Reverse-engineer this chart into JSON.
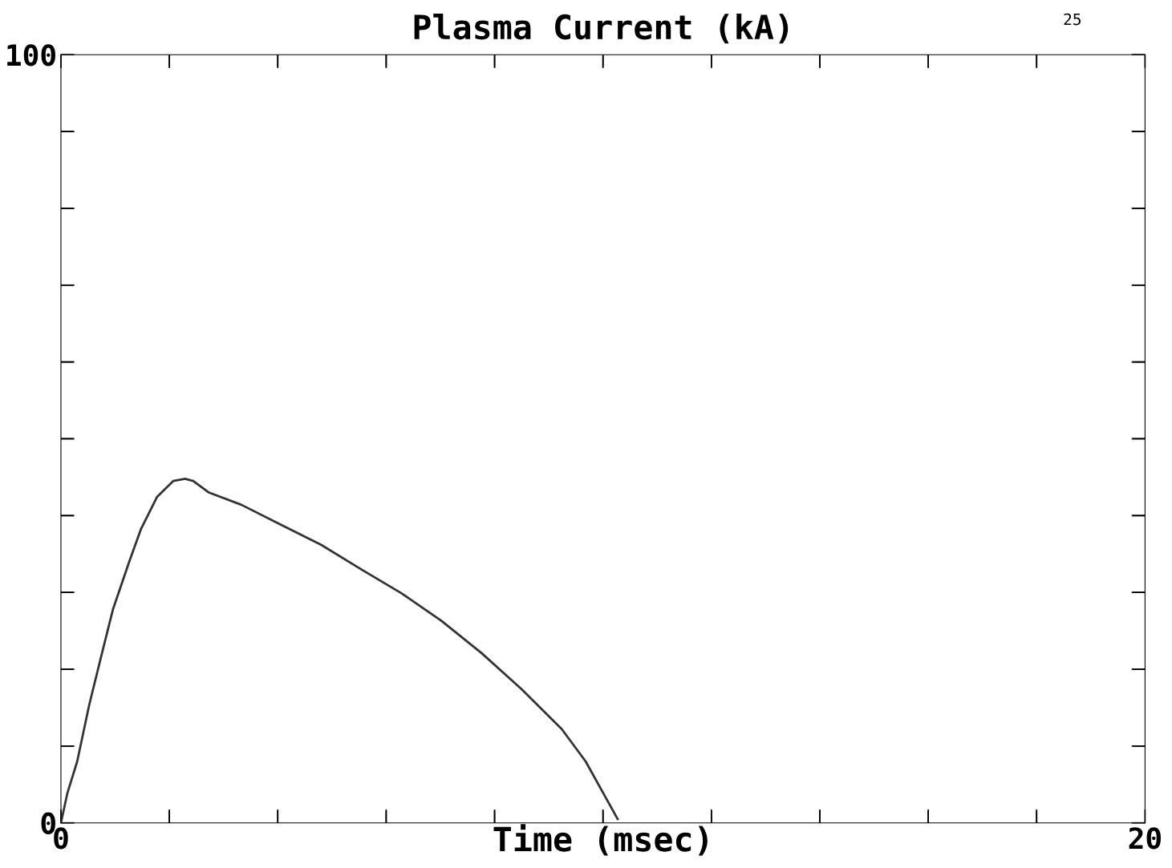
{
  "chart_data": {
    "type": "line",
    "title": "Plasma Current (kA)",
    "xlabel": "Time (msec)",
    "annotations": [
      "25"
    ],
    "x": [
      0,
      0.12,
      0.3,
      0.52,
      0.74,
      0.96,
      1.26,
      1.48,
      1.77,
      2.07,
      2.29,
      2.44,
      2.73,
      3.33,
      4.06,
      4.8,
      5.54,
      6.28,
      7.02,
      7.76,
      8.5,
      9.24,
      9.68,
      10.05,
      10.27
    ],
    "series": [
      {
        "color": "#333333",
        "values": [
          0,
          3.9,
          8,
          15.3,
          21.6,
          27.8,
          34,
          38.3,
          42.4,
          44.5,
          44.8,
          44.5,
          43,
          41.4,
          38.8,
          36.2,
          33,
          29.9,
          26.3,
          22.1,
          17.4,
          12.2,
          8,
          3.3,
          0.5
        ]
      }
    ],
    "xlim": [
      0,
      20
    ],
    "ylim": [
      0,
      100
    ],
    "xticks": [
      0,
      {
        "value": 2,
        "label": null
      },
      {
        "value": 4,
        "label": null
      },
      {
        "value": 6,
        "label": null
      },
      {
        "value": 8,
        "label": null
      },
      {
        "value": 10,
        "label": null
      },
      {
        "value": 12,
        "label": null
      },
      {
        "value": 14,
        "label": null
      },
      {
        "value": 16,
        "label": null
      },
      {
        "value": 18,
        "label": null
      },
      20
    ],
    "yticks": [
      0,
      {
        "value": 10,
        "label": null
      },
      {
        "value": 20,
        "label": null
      },
      {
        "value": 30,
        "label": null
      },
      {
        "value": 40,
        "label": null
      },
      {
        "value": 50,
        "label": null
      },
      {
        "value": 60,
        "label": null
      },
      {
        "value": 70,
        "label": null
      },
      {
        "value": 80,
        "label": null
      },
      {
        "value": 90,
        "label": null
      },
      100
    ],
    "grid": false,
    "legend": false,
    "marker": "none",
    "line_style": "solid"
  }
}
